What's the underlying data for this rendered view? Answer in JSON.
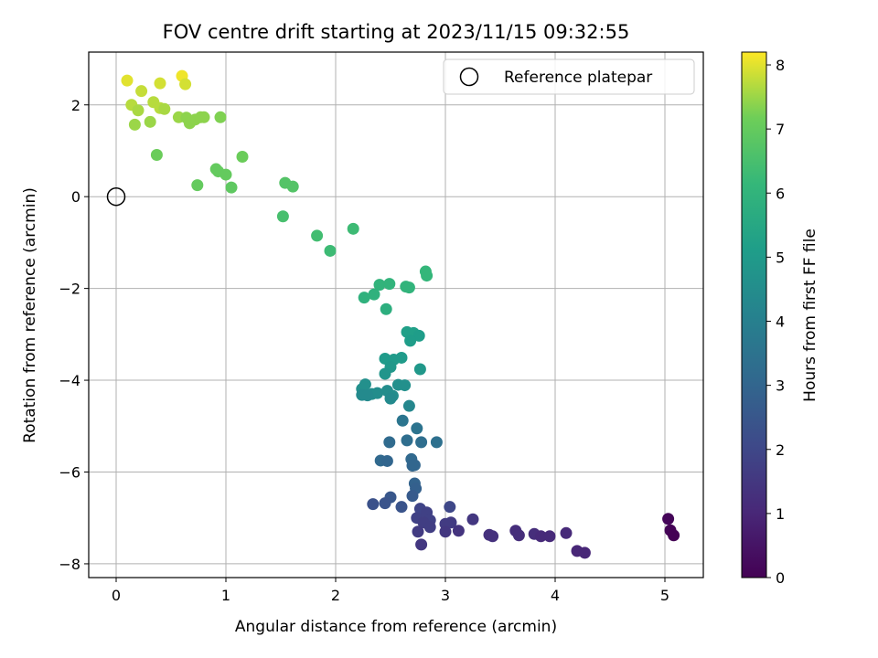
{
  "chart_data": {
    "type": "scatter",
    "title": "FOV centre drift starting at 2023/11/15 09:32:55",
    "xlabel": "Angular distance from reference (arcmin)",
    "ylabel": "Rotation from reference (arcmin)",
    "xlim": [
      -0.25,
      5.35
    ],
    "ylim": [
      -8.3,
      3.15
    ],
    "xticks": [
      0,
      1,
      2,
      3,
      4,
      5
    ],
    "yticks": [
      -8,
      -6,
      -4,
      -2,
      0,
      2
    ],
    "xtick_labels": [
      "0",
      "1",
      "2",
      "3",
      "4",
      "5"
    ],
    "ytick_labels": [
      "−8",
      "−6",
      "−4",
      "−2",
      "0",
      "2"
    ],
    "grid": true,
    "legend": {
      "placement": "top-right",
      "entries": [
        "Reference platepar"
      ]
    },
    "reference_point": {
      "x": 0,
      "y": 0
    },
    "colorbar": {
      "label": "Hours from first FF file",
      "range": [
        0,
        8.2
      ],
      "ticks": [
        0,
        1,
        2,
        3,
        4,
        5,
        6,
        7,
        8
      ],
      "tick_labels": [
        "0",
        "1",
        "2",
        "3",
        "4",
        "5",
        "6",
        "7",
        "8"
      ],
      "colormap": "viridis"
    },
    "points": [
      {
        "x": 0.1,
        "y": 2.53,
        "c": 8.0
      },
      {
        "x": 0.4,
        "y": 2.47,
        "c": 7.9
      },
      {
        "x": 0.6,
        "y": 2.63,
        "c": 8.1
      },
      {
        "x": 0.63,
        "y": 2.45,
        "c": 7.9
      },
      {
        "x": 0.23,
        "y": 2.3,
        "c": 7.8
      },
      {
        "x": 0.34,
        "y": 2.06,
        "c": 7.7
      },
      {
        "x": 0.14,
        "y": 2.0,
        "c": 7.7
      },
      {
        "x": 0.4,
        "y": 1.93,
        "c": 7.7
      },
      {
        "x": 0.44,
        "y": 1.91,
        "c": 7.6
      },
      {
        "x": 0.2,
        "y": 1.88,
        "c": 7.6
      },
      {
        "x": 0.57,
        "y": 1.73,
        "c": 7.5
      },
      {
        "x": 0.31,
        "y": 1.63,
        "c": 7.5
      },
      {
        "x": 0.17,
        "y": 1.57,
        "c": 7.5
      },
      {
        "x": 0.64,
        "y": 1.72,
        "c": 7.4
      },
      {
        "x": 0.67,
        "y": 1.6,
        "c": 7.4
      },
      {
        "x": 0.72,
        "y": 1.68,
        "c": 7.4
      },
      {
        "x": 0.77,
        "y": 1.73,
        "c": 7.4
      },
      {
        "x": 0.8,
        "y": 1.73,
        "c": 7.4
      },
      {
        "x": 0.95,
        "y": 1.73,
        "c": 7.3
      },
      {
        "x": 1.15,
        "y": 0.87,
        "c": 7.1
      },
      {
        "x": 0.37,
        "y": 0.91,
        "c": 7.1
      },
      {
        "x": 0.91,
        "y": 0.6,
        "c": 7.0
      },
      {
        "x": 0.93,
        "y": 0.55,
        "c": 7.0
      },
      {
        "x": 1.0,
        "y": 0.48,
        "c": 7.0
      },
      {
        "x": 0.74,
        "y": 0.25,
        "c": 7.0
      },
      {
        "x": 1.05,
        "y": 0.2,
        "c": 6.9
      },
      {
        "x": 1.54,
        "y": 0.3,
        "c": 6.7
      },
      {
        "x": 1.61,
        "y": 0.22,
        "c": 6.7
      },
      {
        "x": 1.52,
        "y": -0.43,
        "c": 6.5
      },
      {
        "x": 1.83,
        "y": -0.85,
        "c": 6.4
      },
      {
        "x": 1.95,
        "y": -1.18,
        "c": 6.3
      },
      {
        "x": 2.16,
        "y": -0.7,
        "c": 6.3
      },
      {
        "x": 2.82,
        "y": -1.63,
        "c": 6.1
      },
      {
        "x": 2.83,
        "y": -1.72,
        "c": 6.1
      },
      {
        "x": 2.4,
        "y": -1.92,
        "c": 6.0
      },
      {
        "x": 2.49,
        "y": -1.9,
        "c": 6.0
      },
      {
        "x": 2.64,
        "y": -1.96,
        "c": 6.0
      },
      {
        "x": 2.67,
        "y": -1.98,
        "c": 6.0
      },
      {
        "x": 2.35,
        "y": -2.13,
        "c": 5.9
      },
      {
        "x": 2.26,
        "y": -2.2,
        "c": 5.9
      },
      {
        "x": 2.46,
        "y": -2.45,
        "c": 5.8
      },
      {
        "x": 2.65,
        "y": -2.95,
        "c": 5.2
      },
      {
        "x": 2.71,
        "y": -2.97,
        "c": 5.2
      },
      {
        "x": 2.76,
        "y": -3.03,
        "c": 5.1
      },
      {
        "x": 2.68,
        "y": -3.14,
        "c": 5.1
      },
      {
        "x": 2.45,
        "y": -3.53,
        "c": 5.0
      },
      {
        "x": 2.53,
        "y": -3.55,
        "c": 5.0
      },
      {
        "x": 2.6,
        "y": -3.51,
        "c": 5.0
      },
      {
        "x": 2.5,
        "y": -3.71,
        "c": 4.9
      },
      {
        "x": 2.77,
        "y": -3.76,
        "c": 4.9
      },
      {
        "x": 2.45,
        "y": -3.86,
        "c": 4.8
      },
      {
        "x": 2.24,
        "y": -4.19,
        "c": 4.6
      },
      {
        "x": 2.27,
        "y": -4.09,
        "c": 4.6
      },
      {
        "x": 2.33,
        "y": -4.3,
        "c": 4.5
      },
      {
        "x": 2.38,
        "y": -4.28,
        "c": 4.5
      },
      {
        "x": 2.57,
        "y": -4.1,
        "c": 4.6
      },
      {
        "x": 2.63,
        "y": -4.11,
        "c": 4.6
      },
      {
        "x": 2.47,
        "y": -4.23,
        "c": 4.5
      },
      {
        "x": 2.52,
        "y": -4.34,
        "c": 4.5
      },
      {
        "x": 2.24,
        "y": -4.32,
        "c": 4.4
      },
      {
        "x": 2.29,
        "y": -4.33,
        "c": 4.4
      },
      {
        "x": 2.5,
        "y": -4.4,
        "c": 4.4
      },
      {
        "x": 2.67,
        "y": -4.56,
        "c": 4.3
      },
      {
        "x": 2.61,
        "y": -4.88,
        "c": 3.6
      },
      {
        "x": 2.74,
        "y": -5.05,
        "c": 3.5
      },
      {
        "x": 2.49,
        "y": -5.35,
        "c": 3.2
      },
      {
        "x": 2.65,
        "y": -5.31,
        "c": 3.3
      },
      {
        "x": 2.78,
        "y": -5.35,
        "c": 3.3
      },
      {
        "x": 2.92,
        "y": -5.35,
        "c": 3.4
      },
      {
        "x": 2.41,
        "y": -5.75,
        "c": 3.1
      },
      {
        "x": 2.47,
        "y": -5.76,
        "c": 3.0
      },
      {
        "x": 2.69,
        "y": -5.72,
        "c": 3.1
      },
      {
        "x": 2.7,
        "y": -5.86,
        "c": 3.0
      },
      {
        "x": 2.72,
        "y": -5.85,
        "c": 3.0
      },
      {
        "x": 2.72,
        "y": -6.25,
        "c": 2.9
      },
      {
        "x": 2.73,
        "y": -6.36,
        "c": 2.8
      },
      {
        "x": 2.7,
        "y": -6.52,
        "c": 2.6
      },
      {
        "x": 2.5,
        "y": -6.55,
        "c": 2.5
      },
      {
        "x": 2.45,
        "y": -6.68,
        "c": 2.4
      },
      {
        "x": 2.34,
        "y": -6.7,
        "c": 2.3
      },
      {
        "x": 2.6,
        "y": -6.76,
        "c": 2.4
      },
      {
        "x": 3.04,
        "y": -6.76,
        "c": 2.0
      },
      {
        "x": 2.77,
        "y": -6.8,
        "c": 1.9
      },
      {
        "x": 2.83,
        "y": -6.88,
        "c": 1.8
      },
      {
        "x": 2.74,
        "y": -7.0,
        "c": 1.8
      },
      {
        "x": 2.86,
        "y": -7.05,
        "c": 1.8
      },
      {
        "x": 2.8,
        "y": -7.1,
        "c": 1.7
      },
      {
        "x": 2.86,
        "y": -7.2,
        "c": 1.7
      },
      {
        "x": 3.0,
        "y": -7.13,
        "c": 1.6
      },
      {
        "x": 3.05,
        "y": -7.1,
        "c": 1.6
      },
      {
        "x": 3.25,
        "y": -7.03,
        "c": 1.5
      },
      {
        "x": 2.75,
        "y": -7.3,
        "c": 1.6
      },
      {
        "x": 3.0,
        "y": -7.3,
        "c": 1.5
      },
      {
        "x": 3.12,
        "y": -7.28,
        "c": 1.4
      },
      {
        "x": 2.78,
        "y": -7.58,
        "c": 1.5
      },
      {
        "x": 3.4,
        "y": -7.37,
        "c": 1.3
      },
      {
        "x": 3.43,
        "y": -7.4,
        "c": 1.3
      },
      {
        "x": 3.64,
        "y": -7.28,
        "c": 1.2
      },
      {
        "x": 3.67,
        "y": -7.38,
        "c": 1.2
      },
      {
        "x": 3.81,
        "y": -7.35,
        "c": 1.2
      },
      {
        "x": 3.87,
        "y": -7.4,
        "c": 1.1
      },
      {
        "x": 3.95,
        "y": -7.4,
        "c": 1.1
      },
      {
        "x": 4.1,
        "y": -7.33,
        "c": 1.1
      },
      {
        "x": 4.2,
        "y": -7.72,
        "c": 1.0
      },
      {
        "x": 4.27,
        "y": -7.76,
        "c": 1.0
      },
      {
        "x": 5.03,
        "y": -7.02,
        "c": 0.1
      },
      {
        "x": 5.05,
        "y": -7.27,
        "c": 0.05
      },
      {
        "x": 5.08,
        "y": -7.38,
        "c": 0.0
      }
    ]
  }
}
